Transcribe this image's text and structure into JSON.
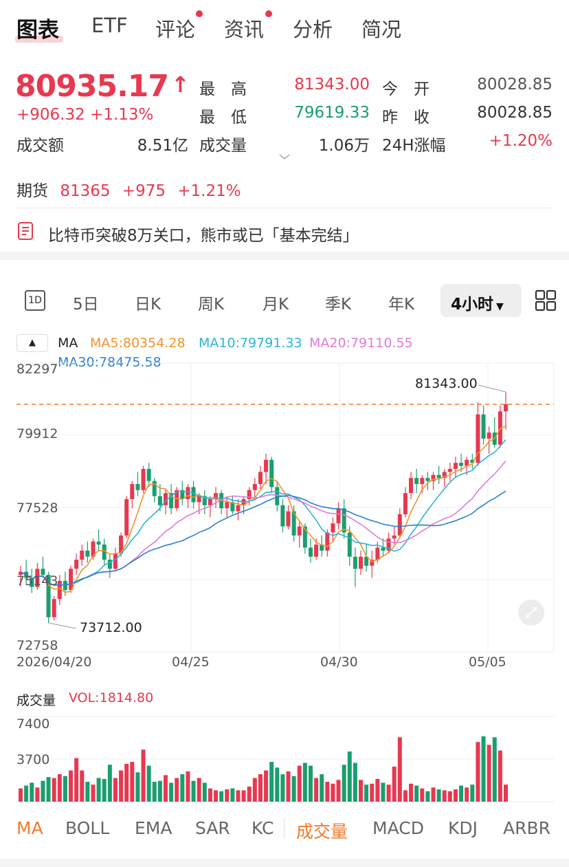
{
  "tabs": [
    "图表",
    "ETF",
    "评论",
    "资讯",
    "分析",
    "简况"
  ],
  "quote": {
    "price": "80935.17",
    "arrow": "↑",
    "change": "+906.32",
    "change_pct": "+1.13%",
    "turnover_label": "成交额",
    "turnover": "8.51亿",
    "high_label": "最　高",
    "high": "81343.00",
    "low_label": "最　低",
    "low": "79619.33",
    "volume_label": "成交量",
    "volume": "1.06万",
    "open_label": "今　开",
    "open": "80028.85",
    "prev_close_label": "昨　收",
    "prev_close": "80028.85",
    "chg24_label": "24H涨幅",
    "chg24": "+1.20%"
  },
  "futures": {
    "label": "期货",
    "price": "81365",
    "change": "+975",
    "change_pct": "+1.21%"
  },
  "news": {
    "headline": "比特币突破8万关口，熊市或已「基本完结」"
  },
  "periods": [
    "1D",
    "5日",
    "日K",
    "周K",
    "月K",
    "季K",
    "年K",
    "4小时"
  ],
  "ma_legend": {
    "collapse": "▲",
    "ma": "MA",
    "ma5": "MA5:80354.28",
    "ma10": "MA10:79791.33",
    "ma20": "MA20:79110.55",
    "ma30": "MA30:78475.58"
  },
  "colors": {
    "up": "#e8384f",
    "down": "#1a9e6e",
    "ma5": "#f0932b",
    "ma10": "#2ab3d6",
    "ma20": "#de7ad6",
    "ma30": "#2a7fd0",
    "dashed": "#f07a2a"
  },
  "chart_data": [
    {
      "type": "candlestick",
      "y_ticks": [
        "82297",
        "79912",
        "77528",
        "75143",
        "72758"
      ],
      "ylim": [
        72758,
        82297
      ],
      "x_labels": [
        "2026/04/20",
        "04/25",
        "04/30",
        "05/05"
      ],
      "max_marker": "81343.00",
      "min_marker": "73712.00",
      "last_price_line": 80935.17,
      "candles": [
        [
          75300,
          75600,
          74900,
          75400
        ],
        [
          75400,
          75800,
          75000,
          75200
        ],
        [
          75200,
          75500,
          74700,
          74900
        ],
        [
          74900,
          75700,
          74800,
          75500
        ],
        [
          75500,
          75900,
          75200,
          75300
        ],
        [
          75300,
          75400,
          73712,
          73900
        ],
        [
          73900,
          74600,
          73800,
          74500
        ],
        [
          74500,
          75300,
          74300,
          75100
        ],
        [
          75100,
          75400,
          74600,
          74800
        ],
        [
          74800,
          75600,
          74700,
          75500
        ],
        [
          75500,
          76000,
          75300,
          75800
        ],
        [
          75800,
          76300,
          75600,
          76100
        ],
        [
          76100,
          76400,
          75700,
          75900
        ],
        [
          75900,
          76500,
          75800,
          76400
        ],
        [
          76400,
          76800,
          76100,
          76300
        ],
        [
          76300,
          76500,
          75600,
          75800
        ],
        [
          75800,
          76000,
          75200,
          75500
        ],
        [
          75500,
          76200,
          75400,
          76000
        ],
        [
          76000,
          76700,
          75900,
          76600
        ],
        [
          76600,
          77900,
          76500,
          77800
        ],
        [
          77800,
          78400,
          77500,
          78300
        ],
        [
          78300,
          78700,
          77900,
          78100
        ],
        [
          78100,
          78900,
          78000,
          78800
        ],
        [
          78800,
          79000,
          78200,
          78400
        ],
        [
          78400,
          78500,
          77700,
          77900
        ],
        [
          77900,
          78300,
          77400,
          77600
        ],
        [
          77600,
          78100,
          77300,
          78000
        ],
        [
          78000,
          78300,
          77300,
          77500
        ],
        [
          77500,
          78200,
          77400,
          78100
        ],
        [
          78100,
          78400,
          77600,
          77800
        ],
        [
          77800,
          78300,
          77500,
          78200
        ],
        [
          78200,
          78400,
          77500,
          77700
        ],
        [
          77700,
          78000,
          77300,
          77900
        ],
        [
          77900,
          78100,
          77300,
          77600
        ],
        [
          77600,
          77900,
          77200,
          77800
        ],
        [
          77800,
          78200,
          77500,
          78000
        ],
        [
          78000,
          78100,
          77300,
          77500
        ],
        [
          77500,
          77900,
          77200,
          77700
        ],
        [
          77700,
          77900,
          77300,
          77400
        ],
        [
          77400,
          77800,
          77100,
          77600
        ],
        [
          77600,
          77900,
          77300,
          77800
        ],
        [
          77800,
          78200,
          77600,
          78100
        ],
        [
          78100,
          78500,
          77800,
          78300
        ],
        [
          78300,
          78900,
          78100,
          78700
        ],
        [
          78700,
          79300,
          78300,
          79100
        ],
        [
          79100,
          79200,
          78000,
          78200
        ],
        [
          78200,
          78400,
          77400,
          77600
        ],
        [
          77600,
          77800,
          76700,
          76900
        ],
        [
          76900,
          77600,
          76800,
          77400
        ],
        [
          77400,
          77600,
          76400,
          76600
        ],
        [
          76600,
          77100,
          76200,
          76900
        ],
        [
          76900,
          77000,
          76000,
          76200
        ],
        [
          76200,
          76500,
          75700,
          75900
        ],
        [
          75900,
          76500,
          75800,
          76300
        ],
        [
          76300,
          76600,
          75900,
          76100
        ],
        [
          76100,
          76800,
          75900,
          76700
        ],
        [
          76700,
          77200,
          76400,
          77000
        ],
        [
          77000,
          77700,
          76800,
          77500
        ],
        [
          77500,
          77800,
          76500,
          76700
        ],
        [
          76700,
          76900,
          75600,
          75900
        ],
        [
          75900,
          76200,
          74900,
          75500
        ],
        [
          75500,
          76100,
          75300,
          75900
        ],
        [
          75900,
          76300,
          75400,
          75600
        ],
        [
          75600,
          76100,
          75200,
          75800
        ],
        [
          75800,
          76400,
          75700,
          76200
        ],
        [
          76200,
          76500,
          75900,
          76100
        ],
        [
          76100,
          76700,
          76000,
          76500
        ],
        [
          76500,
          76900,
          76300,
          76600
        ],
        [
          76600,
          77500,
          76500,
          77300
        ],
        [
          77300,
          78200,
          77200,
          78000
        ],
        [
          78000,
          78700,
          77800,
          78500
        ],
        [
          78500,
          78800,
          78000,
          78300
        ],
        [
          78300,
          78600,
          78000,
          78500
        ],
        [
          78500,
          78700,
          78100,
          78400
        ],
        [
          78400,
          78700,
          78100,
          78600
        ],
        [
          78600,
          78900,
          78300,
          78500
        ],
        [
          78500,
          78800,
          78200,
          78700
        ],
        [
          78700,
          79000,
          78400,
          78800
        ],
        [
          78800,
          79200,
          78500,
          79000
        ],
        [
          79000,
          79300,
          78700,
          78900
        ],
        [
          78900,
          79200,
          78600,
          79100
        ],
        [
          79100,
          79300,
          78800,
          79000
        ],
        [
          79000,
          81000,
          78900,
          80600
        ],
        [
          80600,
          80900,
          79600,
          79800
        ],
        [
          79800,
          80200,
          79300,
          80000
        ],
        [
          80000,
          80500,
          79500,
          79600
        ],
        [
          79600,
          80900,
          79500,
          80700
        ],
        [
          80700,
          81343,
          80100,
          80935.17
        ]
      ],
      "ma5_last": 80354.28,
      "ma10_last": 79791.33,
      "ma20_last": 79110.55,
      "ma30_last": 78475.58
    },
    {
      "type": "bar",
      "title": "成交量",
      "legend": "VOL:1814.80",
      "y_ticks": [
        "7400",
        "3700"
      ],
      "ylim": [
        0,
        9000
      ],
      "values": [
        1400,
        1700,
        2000,
        1500,
        2200,
        2600,
        2500,
        2900,
        2700,
        3300,
        4600,
        3300,
        2100,
        1800,
        2500,
        2400,
        3900,
        2500,
        3300,
        4000,
        4200,
        3100,
        5500,
        3800,
        2100,
        2200,
        2800,
        2000,
        2500,
        2900,
        3200,
        2200,
        2500,
        2000,
        1400,
        1200,
        1100,
        1300,
        1400,
        1200,
        1200,
        1600,
        2500,
        2900,
        3300,
        4200,
        3600,
        2900,
        3200,
        2700,
        3800,
        4100,
        3800,
        2500,
        2900,
        2100,
        1900,
        2300,
        3900,
        5300,
        4100,
        2300,
        1800,
        1900,
        2400,
        2000,
        1800,
        3700,
        6800,
        1200,
        1900,
        1700,
        1400,
        1100,
        1500,
        1300,
        1200,
        1100,
        1300,
        1700,
        1500,
        1800,
        6300,
        6900,
        6000,
        6800,
        5400,
        1800
      ]
    }
  ],
  "chart_expand_icon": "expand-icon",
  "indicators": [
    "MA",
    "BOLL",
    "EMA",
    "SAR",
    "KC",
    "成交量",
    "MACD",
    "KDJ",
    "ARBR"
  ]
}
